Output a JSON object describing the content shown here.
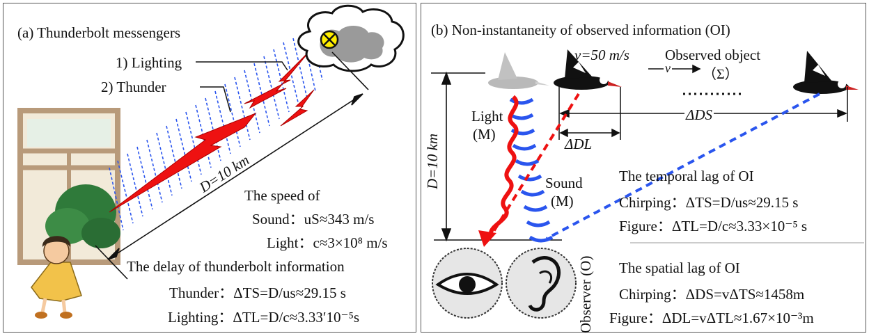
{
  "panel_a": {
    "title": "(a) Thunderbolt messengers",
    "label_lighting": "1) Lighting",
    "label_thunder": "2) Thunder",
    "distance_label": "D=10 km",
    "speed_heading": "The speed of",
    "sound_speed": "Sound：uS≈343 m/s",
    "light_speed": "Light：c≈3×10⁸ m/s",
    "delay_heading": "The delay of thunderbolt information",
    "thunder_delay": "Thunder：ΔTS=D/us≈29.15 s",
    "lighting_delay": "Lighting：ΔTL=D/c≈3.33′10⁻⁵s"
  },
  "panel_b": {
    "title": "(b) Non-instantaneity of observed information (OI)",
    "velocity": "v=50 m/s",
    "observed_object": "Observed object",
    "v_arrow_label": "v",
    "sigma": "（Σ）",
    "delta_ds": "ΔDS",
    "delta_dl": "ΔDL",
    "height_label": "D=10 km",
    "light_label": "Light",
    "light_m": "(M)",
    "sound_label": "Sound",
    "sound_m": "(M)",
    "observer_label": "Observer (O)",
    "temporal_heading": "The temporal lag of OI",
    "temporal_chirping": "Chirping：ΔTS=D/us≈29.15 s",
    "temporal_figure": "Figure：ΔTL=D/c≈3.33×10⁻⁵ s",
    "spatial_heading": "The spatial lag of OI",
    "spatial_chirping": "Chirping：ΔDS=vΔTS≈1458m",
    "spatial_figure": "Figure：ΔDL=vΔTL≈1.67×10⁻³m"
  },
  "colors": {
    "lightning": "#ee1111",
    "sound_wave": "#2a55ee",
    "light_wave": "#ee1111",
    "cloud": "#9a9a9a",
    "window_frame": "#b89a7a",
    "bush": "#2f7a3a"
  }
}
